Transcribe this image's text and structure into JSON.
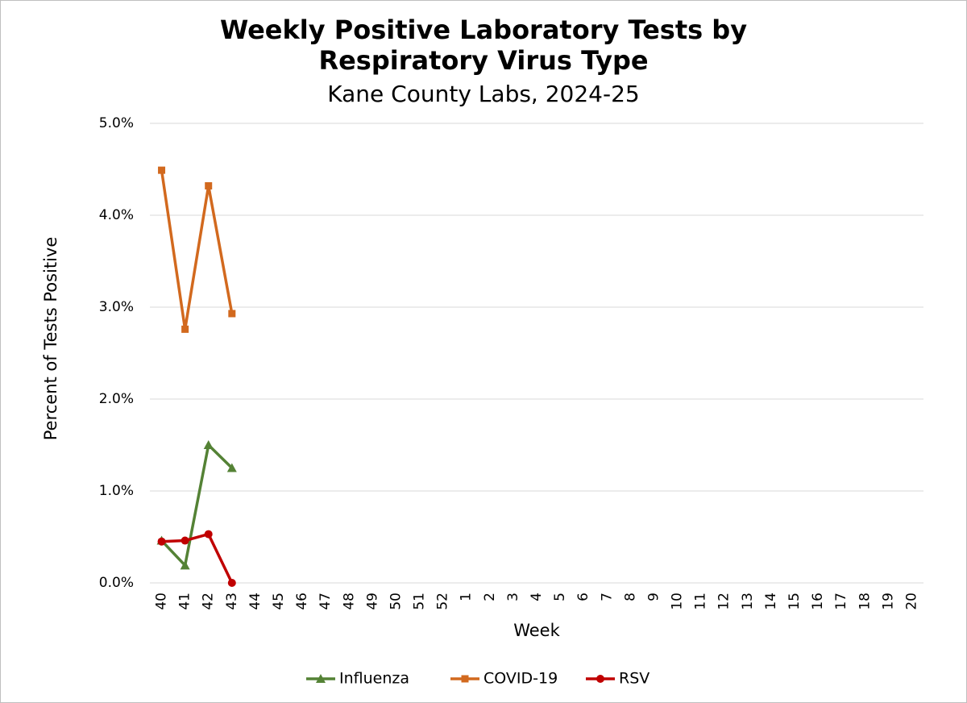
{
  "chart_data": {
    "type": "line",
    "title": "Weekly Positive Laboratory Tests by Respiratory Virus Type",
    "subtitle": "Kane County Labs, 2024-25",
    "x_label": "Week",
    "y_label": "Percent of Tests Positive",
    "categories": [
      "40",
      "41",
      "42",
      "43",
      "44",
      "45",
      "46",
      "47",
      "48",
      "49",
      "50",
      "51",
      "52",
      "1",
      "2",
      "3",
      "4",
      "5",
      "6",
      "7",
      "8",
      "9",
      "10",
      "11",
      "12",
      "13",
      "14",
      "15",
      "16",
      "17",
      "18",
      "19",
      "20"
    ],
    "series": [
      {
        "name": "Influenza",
        "color": "#548235",
        "marker": "triangle",
        "values": [
          0.46,
          0.19,
          1.5,
          1.25,
          null,
          null,
          null,
          null,
          null,
          null,
          null,
          null,
          null,
          null,
          null,
          null,
          null,
          null,
          null,
          null,
          null,
          null,
          null,
          null,
          null,
          null,
          null,
          null,
          null,
          null,
          null,
          null,
          null
        ]
      },
      {
        "name": "COVID-19",
        "color": "#d2691e",
        "marker": "square",
        "values": [
          4.49,
          2.76,
          4.32,
          2.93,
          null,
          null,
          null,
          null,
          null,
          null,
          null,
          null,
          null,
          null,
          null,
          null,
          null,
          null,
          null,
          null,
          null,
          null,
          null,
          null,
          null,
          null,
          null,
          null,
          null,
          null,
          null,
          null,
          null
        ]
      },
      {
        "name": "RSV",
        "color": "#c00000",
        "marker": "circle",
        "values": [
          0.45,
          0.46,
          0.53,
          0.0,
          null,
          null,
          null,
          null,
          null,
          null,
          null,
          null,
          null,
          null,
          null,
          null,
          null,
          null,
          null,
          null,
          null,
          null,
          null,
          null,
          null,
          null,
          null,
          null,
          null,
          null,
          null,
          null,
          null
        ]
      }
    ],
    "ylim": [
      0,
      5
    ],
    "yticks": [
      {
        "value": 0,
        "label": "0.0%"
      },
      {
        "value": 1,
        "label": "1.0%"
      },
      {
        "value": 2,
        "label": "2.0%"
      },
      {
        "value": 3,
        "label": "3.0%"
      },
      {
        "value": 4,
        "label": "4.0%"
      },
      {
        "value": 5,
        "label": "5.0%"
      }
    ],
    "grid": true,
    "legend": "bottom"
  }
}
